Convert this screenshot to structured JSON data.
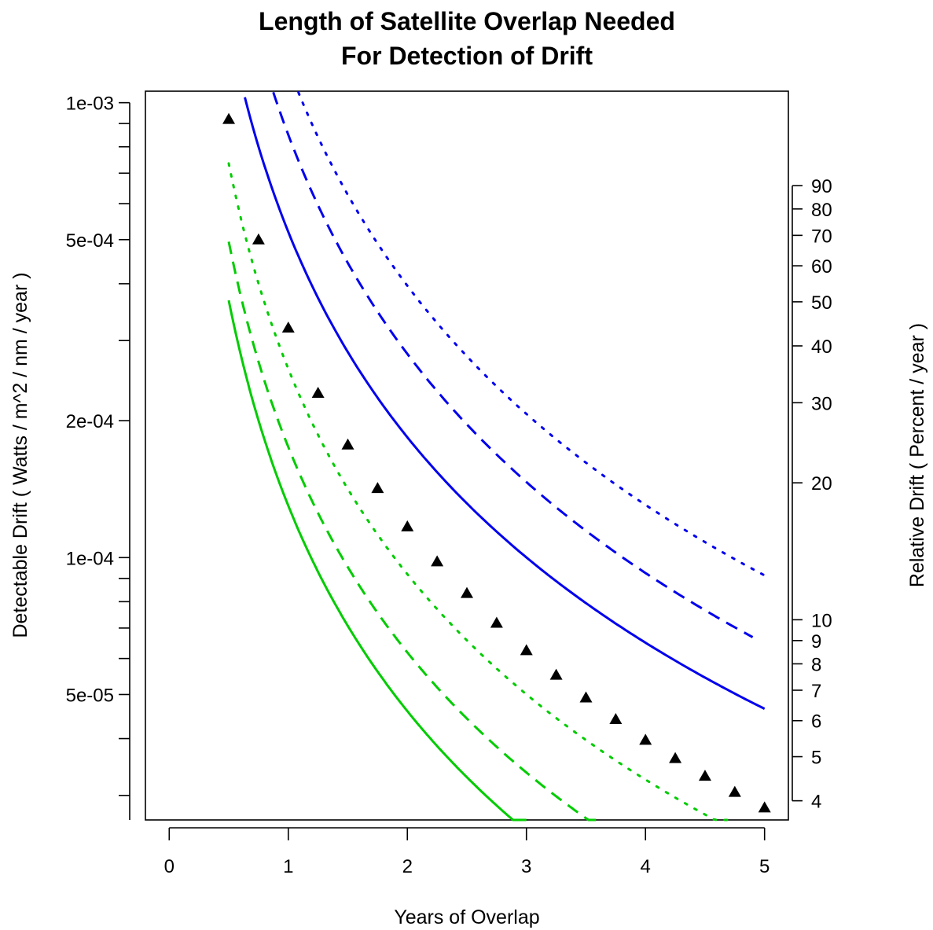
{
  "chart_data": {
    "type": "line",
    "title_lines": [
      "Length of Satellite Overlap Needed",
      "For Detection of Drift"
    ],
    "xlabel": "Years of Overlap",
    "ylabel_left": "Detectable Drift    ( Watts / m^2 / nm / year )",
    "ylabel_right": "Relative Drift    ( Percent / year )",
    "x_ticks": [
      0,
      1,
      2,
      3,
      4,
      5
    ],
    "x_tick_labels": [
      "0",
      "1",
      "2",
      "3",
      "4",
      "5"
    ],
    "xlim": [
      -0.2,
      5.2
    ],
    "y_scale": "log",
    "ylim": [
      2.65e-05,
      0.00106
    ],
    "y_left_major_ticks": [
      0.001,
      0.0005,
      0.0002,
      0.0001,
      5e-05
    ],
    "y_left_major_labels": [
      "1e-03",
      "5e-04",
      "2e-04",
      "1e-04",
      "5e-05"
    ],
    "y_left_minor_ticks": [
      0.0009,
      0.0008,
      0.0007,
      0.0006,
      0.0004,
      0.0003,
      9e-05,
      8e-05,
      7e-05,
      6e-05,
      4e-05,
      3e-05
    ],
    "y_right_ticks": [
      {
        "label": "90",
        "value": 0.000657
      },
      {
        "label": "80",
        "value": 0.000584
      },
      {
        "label": "70",
        "value": 0.000511
      },
      {
        "label": "60",
        "value": 0.000438
      },
      {
        "label": "50",
        "value": 0.000365
      },
      {
        "label": "40",
        "value": 0.000292
      },
      {
        "label": "30",
        "value": 0.000219
      },
      {
        "label": "20",
        "value": 0.000146
      },
      {
        "label": "10",
        "value": 7.3e-05
      },
      {
        "label": "9",
        "value": 6.57e-05
      },
      {
        "label": "8",
        "value": 5.84e-05
      },
      {
        "label": "7",
        "value": 5.11e-05
      },
      {
        "label": "6",
        "value": 4.38e-05
      },
      {
        "label": "5",
        "value": 3.65e-05
      },
      {
        "label": "4",
        "value": 2.92e-05
      }
    ],
    "series": [
      {
        "color": "#0000ee",
        "style": "dotted",
        "x_range": [
          0.5,
          5.0
        ],
        "A": 0.0012,
        "k": 1.6
      },
      {
        "color": "#0000ee",
        "style": "dashed",
        "x_range": [
          0.5,
          4.9
        ],
        "A": 0.00085,
        "k": 1.6
      },
      {
        "color": "#0000ee",
        "style": "solid",
        "x_range": [
          0.5,
          5.0
        ],
        "A": 0.00052,
        "k": 1.5
      },
      {
        "color": "#000000",
        "style": "triangles",
        "x": [
          0.5,
          0.75,
          1.0,
          1.25,
          1.5,
          1.75,
          2.0,
          2.25,
          2.5,
          2.75,
          3.0,
          3.25,
          3.5,
          3.75,
          4.0,
          4.25,
          4.5,
          4.75,
          5.0
        ],
        "y": [
          0.00092,
          0.0005,
          0.00032,
          0.00023,
          0.000177,
          0.000142,
          0.000117,
          9.8e-05,
          8.35e-05,
          7.18e-05,
          6.25e-05,
          5.52e-05,
          4.92e-05,
          4.41e-05,
          3.97e-05,
          3.62e-05,
          3.31e-05,
          3.05e-05,
          2.82e-05
        ]
      },
      {
        "color": "#00cc00",
        "style": "dotted",
        "x_range": [
          0.5,
          4.7
        ],
        "A": 0.00026,
        "k": 1.5
      },
      {
        "color": "#00cc00",
        "style": "dashed",
        "x_range": [
          0.5,
          3.6
        ],
        "A": 0.000175,
        "k": 1.5
      },
      {
        "color": "#00cc00",
        "style": "solid",
        "x_range": [
          0.5,
          3.0
        ],
        "A": 0.00013,
        "k": 1.5
      }
    ]
  }
}
